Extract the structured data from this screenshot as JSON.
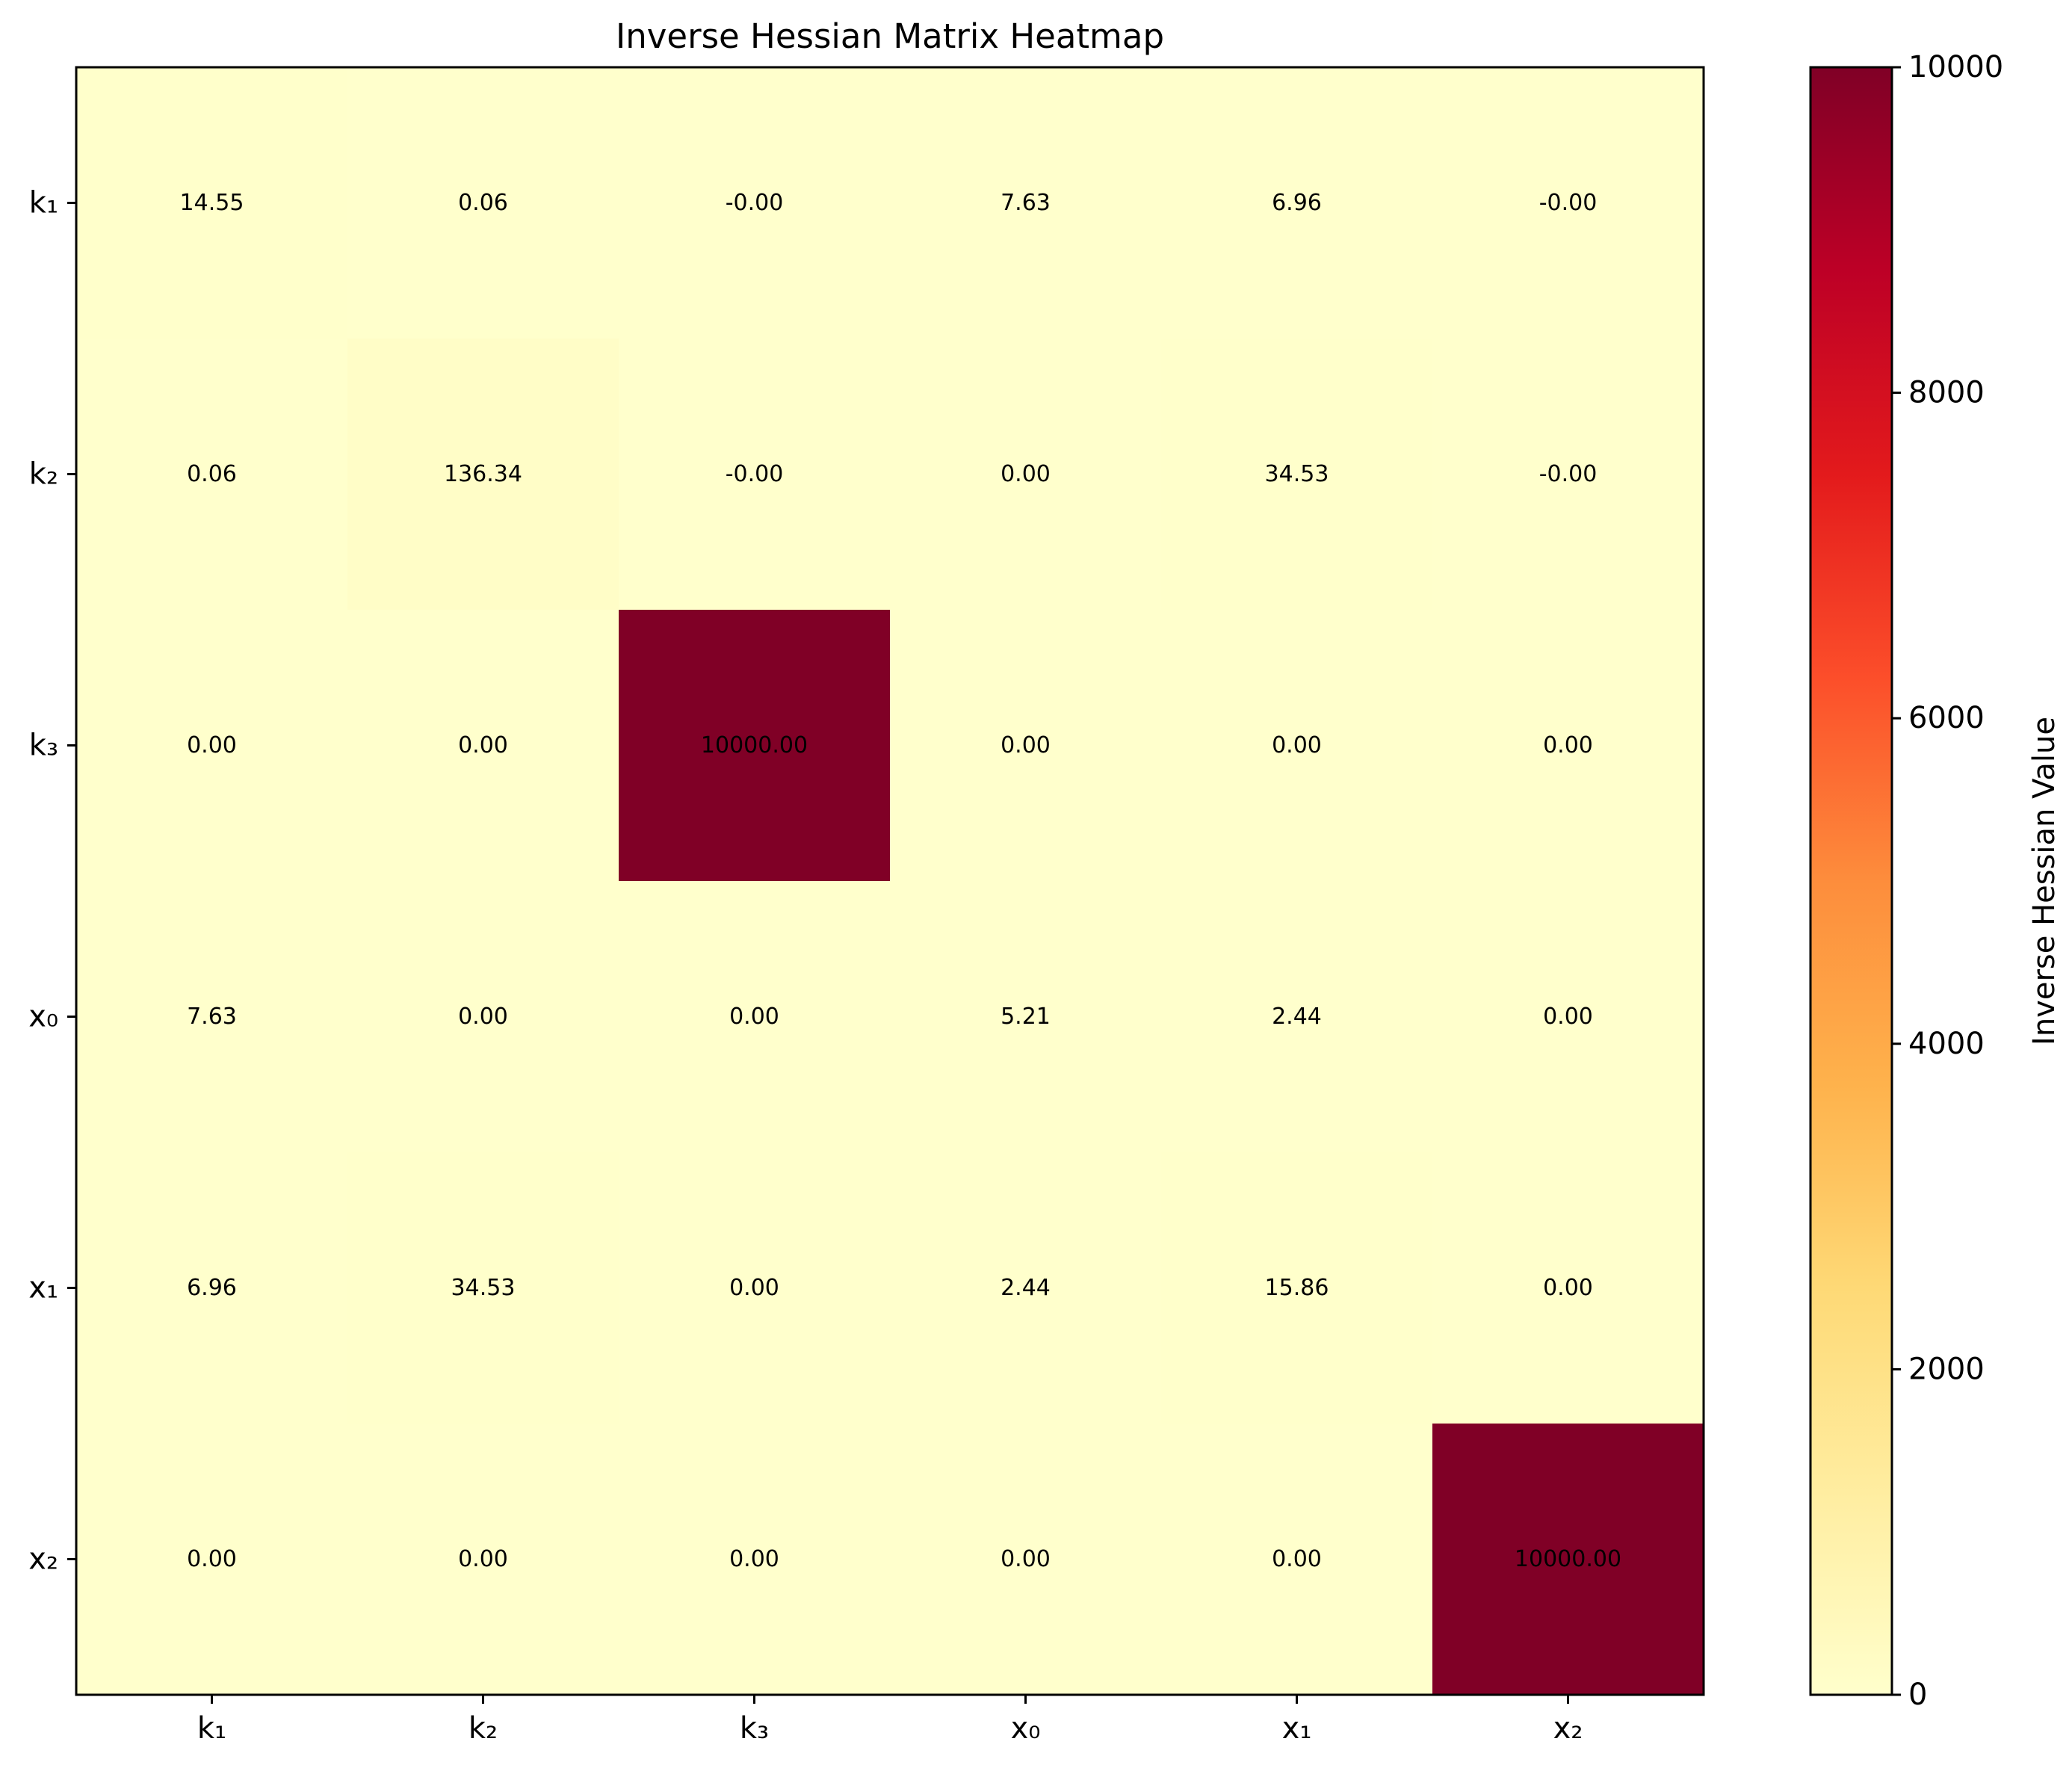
{
  "chart_data": {
    "type": "heatmap",
    "title": "Inverse Hessian Matrix Heatmap",
    "x_categories": [
      "k₁",
      "k₂",
      "k₃",
      "x₀",
      "x₁",
      "x₂"
    ],
    "y_categories": [
      "k₁",
      "k₂",
      "k₃",
      "x₀",
      "x₁",
      "x₂"
    ],
    "values": [
      [
        14.55,
        0.06,
        -0.0,
        7.63,
        6.96,
        -0.0
      ],
      [
        0.06,
        136.34,
        -0.0,
        0.0,
        34.53,
        -0.0
      ],
      [
        0.0,
        0.0,
        10000.0,
        0.0,
        0.0,
        0.0
      ],
      [
        7.63,
        0.0,
        0.0,
        5.21,
        2.44,
        0.0
      ],
      [
        6.96,
        34.53,
        0.0,
        2.44,
        15.86,
        0.0
      ],
      [
        0.0,
        0.0,
        0.0,
        0.0,
        0.0,
        10000.0
      ]
    ],
    "cell_labels": [
      [
        "14.55",
        "0.06",
        "-0.00",
        "7.63",
        "6.96",
        "-0.00"
      ],
      [
        "0.06",
        "136.34",
        "-0.00",
        "0.00",
        "34.53",
        "-0.00"
      ],
      [
        "0.00",
        "0.00",
        "10000.00",
        "0.00",
        "0.00",
        "0.00"
      ],
      [
        "7.63",
        "0.00",
        "0.00",
        "5.21",
        "2.44",
        "0.00"
      ],
      [
        "6.96",
        "34.53",
        "0.00",
        "2.44",
        "15.86",
        "0.00"
      ],
      [
        "0.00",
        "0.00",
        "0.00",
        "0.00",
        "0.00",
        "10000.00"
      ]
    ],
    "colormap": "YlOrRd",
    "color_stops": [
      "#ffffcc",
      "#ffeda0",
      "#fed976",
      "#feb24c",
      "#fd8d3c",
      "#fc4e2a",
      "#e31a1c",
      "#bd0026",
      "#800026"
    ],
    "value_range": [
      0,
      10000
    ],
    "colorbar": {
      "label": "Inverse Hessian Value",
      "ticks": [
        0,
        2000,
        4000,
        6000,
        8000,
        10000
      ],
      "tick_labels": [
        "0",
        "2000",
        "4000",
        "6000",
        "8000",
        "10000"
      ]
    },
    "grid": false,
    "legend": "colorbar-right"
  }
}
